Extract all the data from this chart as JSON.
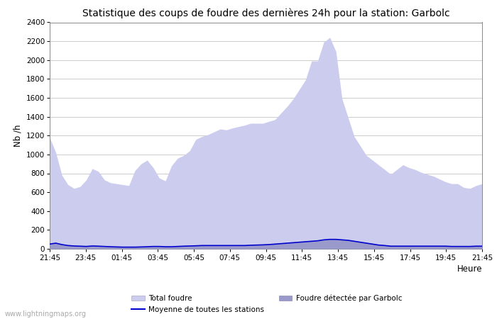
{
  "title": "Statistique des coups de foudre des dernières 24h pour la station: Garbolc",
  "xlabel": "Heure",
  "ylabel": "Nb /h",
  "x_ticks": [
    "21:45",
    "23:45",
    "01:45",
    "03:45",
    "05:45",
    "07:45",
    "09:45",
    "11:45",
    "13:45",
    "15:45",
    "17:45",
    "19:45",
    "21:45"
  ],
  "ylim": [
    0,
    2400
  ],
  "yticks": [
    0,
    200,
    400,
    600,
    800,
    1000,
    1200,
    1400,
    1600,
    1800,
    2000,
    2200,
    2400
  ],
  "bg_color": "#ffffff",
  "plot_bg_color": "#ffffff",
  "grid_color": "#cccccc",
  "total_foudre_color": "#ccccee",
  "garbolc_color": "#9999cc",
  "moyenne_color": "#0000cc",
  "watermark": "www.lightningmaps.org",
  "legend_total": "Total foudre",
  "legend_moyenne": "Moyenne de toutes les stations",
  "legend_garbolc": "Foudre détectée par Garbolc",
  "total_foudre": [
    1180,
    1020,
    780,
    680,
    640,
    660,
    730,
    850,
    820,
    730,
    700,
    690,
    680,
    670,
    830,
    900,
    940,
    860,
    750,
    720,
    880,
    960,
    990,
    1040,
    1160,
    1190,
    1210,
    1240,
    1270,
    1260,
    1280,
    1295,
    1310,
    1330,
    1330,
    1330,
    1350,
    1370,
    1440,
    1510,
    1590,
    1690,
    1790,
    1990,
    1990,
    2190,
    2240,
    2090,
    1590,
    1390,
    1190,
    1090,
    990,
    940,
    890,
    840,
    790,
    840,
    890,
    860,
    840,
    810,
    790,
    770,
    740,
    710,
    690,
    690,
    650,
    640,
    670,
    690
  ],
  "garbolc": [
    50,
    60,
    45,
    35,
    30,
    28,
    25,
    30,
    28,
    25,
    22,
    20,
    18,
    18,
    18,
    20,
    22,
    25,
    25,
    22,
    22,
    25,
    28,
    30,
    32,
    35,
    35,
    35,
    35,
    35,
    35,
    35,
    35,
    38,
    40,
    42,
    45,
    50,
    55,
    60,
    65,
    70,
    75,
    80,
    85,
    95,
    100,
    100,
    95,
    90,
    80,
    70,
    60,
    50,
    40,
    35,
    28,
    28,
    28,
    28,
    28,
    28,
    28,
    28,
    28,
    28,
    25,
    25,
    25,
    25,
    28,
    28
  ],
  "moyenne": [
    50,
    60,
    45,
    35,
    30,
    28,
    25,
    30,
    28,
    25,
    22,
    20,
    18,
    18,
    18,
    20,
    22,
    25,
    25,
    22,
    22,
    25,
    28,
    30,
    32,
    35,
    35,
    35,
    35,
    35,
    35,
    35,
    35,
    38,
    40,
    42,
    45,
    50,
    55,
    60,
    65,
    70,
    75,
    80,
    85,
    95,
    100,
    100,
    95,
    90,
    80,
    70,
    60,
    50,
    40,
    35,
    28,
    28,
    28,
    28,
    28,
    28,
    28,
    28,
    28,
    28,
    25,
    25,
    25,
    25,
    28,
    28
  ]
}
